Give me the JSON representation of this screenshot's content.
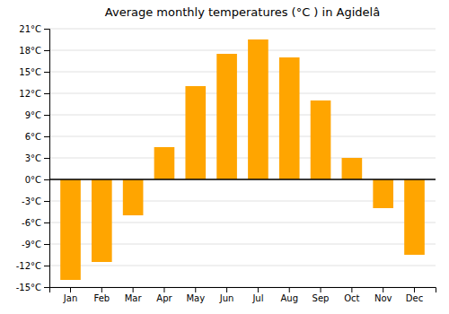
{
  "chart_data": {
    "type": "bar",
    "title": "Average monthly temperatures (°C ) in Agidelâ",
    "categories": [
      "Jan",
      "Feb",
      "Mar",
      "Apr",
      "May",
      "Jun",
      "Jul",
      "Aug",
      "Sep",
      "Oct",
      "Nov",
      "Dec"
    ],
    "values": [
      -14,
      -11.5,
      -5,
      4.5,
      13,
      17.5,
      19.5,
      17,
      11,
      3,
      -4,
      -10.5
    ],
    "color": "#FFA500",
    "ylim": [
      -15,
      21
    ],
    "yticks": [
      {
        "value": -15,
        "label": "-15°C"
      },
      {
        "value": -12,
        "label": "-12°C"
      },
      {
        "value": -9,
        "label": "-9°C"
      },
      {
        "value": -6,
        "label": "-6°C"
      },
      {
        "value": -3,
        "label": "-3°C"
      },
      {
        "value": 0,
        "label": "0°C"
      },
      {
        "value": 3,
        "label": "3°C"
      },
      {
        "value": 6,
        "label": "6°C"
      },
      {
        "value": 9,
        "label": "9°C"
      },
      {
        "value": 12,
        "label": "12°C"
      },
      {
        "value": 15,
        "label": "15°C"
      },
      {
        "value": 18,
        "label": "18°C"
      },
      {
        "value": 21,
        "label": "21°C"
      }
    ],
    "grid": true
  }
}
